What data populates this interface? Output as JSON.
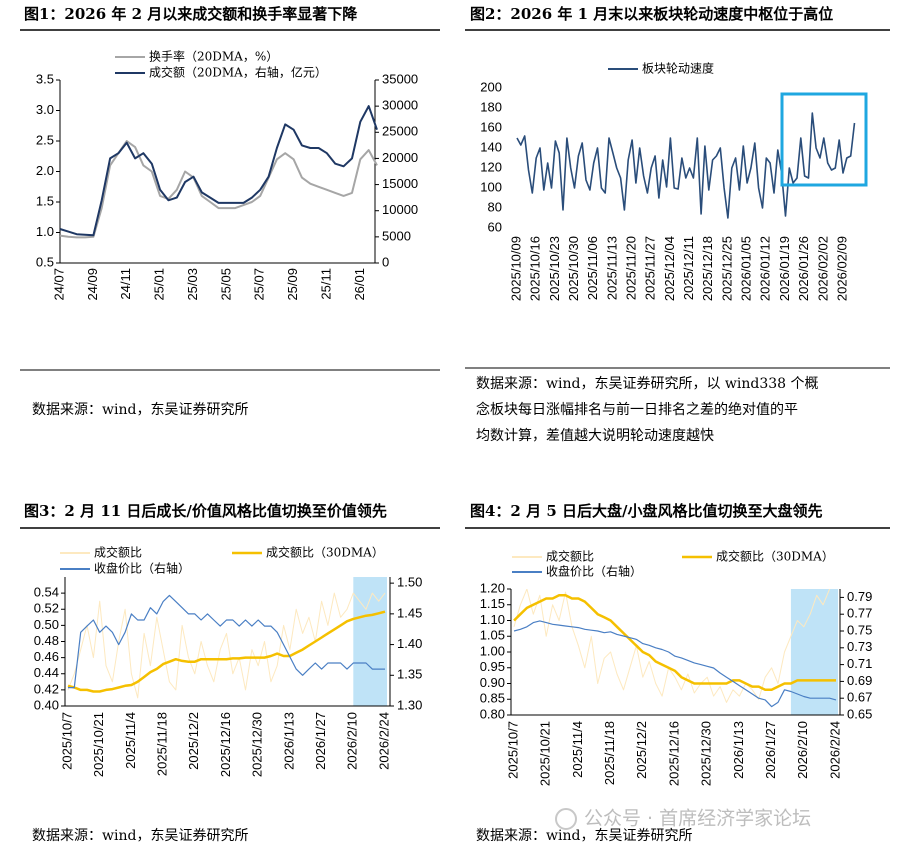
{
  "chart_data": [
    {
      "type": "line",
      "title": "图1：2026 年 2 月以来成交额和换手率显著下降",
      "categories": [
        "24/07",
        null,
        null,
        null,
        "24/09",
        null,
        null,
        null,
        "24/11",
        null,
        null,
        null,
        "25/01",
        null,
        null,
        null,
        "25/03",
        null,
        null,
        null,
        "25/05",
        null,
        null,
        null,
        "25/07",
        null,
        null,
        null,
        "25/09",
        null,
        null,
        null,
        "25/11",
        null,
        null,
        null,
        "26/01",
        null,
        null
      ],
      "series": [
        {
          "name": "换手率（20DMA，%）",
          "color": "#a6a6a6",
          "values": [
            0.95,
            0.93,
            0.92,
            0.92,
            0.93,
            1.4,
            2.1,
            2.3,
            2.5,
            2.4,
            2.1,
            2.0,
            1.6,
            1.55,
            1.7,
            2.0,
            1.9,
            1.6,
            1.5,
            1.4,
            1.4,
            1.4,
            1.45,
            1.5,
            1.6,
            1.9,
            2.2,
            2.3,
            2.2,
            1.9,
            1.8,
            1.75,
            1.7,
            1.65,
            1.6,
            1.65,
            2.2,
            2.35,
            2.1
          ]
        },
        {
          "name": "成交额（20DMA，右轴，亿元）",
          "color": "#1f3864",
          "axis": "y2",
          "values": [
            6500,
            6000,
            5500,
            5400,
            5300,
            12000,
            20000,
            21000,
            23000,
            20000,
            21000,
            19000,
            14000,
            12000,
            12500,
            15500,
            16500,
            13500,
            12500,
            11500,
            11500,
            11500,
            11500,
            12500,
            14000,
            16500,
            22000,
            26500,
            25500,
            22500,
            22000,
            22000,
            21000,
            19000,
            18500,
            20000,
            27000,
            30000,
            25500
          ]
        }
      ],
      "ylim": [
        0.5,
        3.5
      ],
      "yticks": [
        0.5,
        {
          "value": 1,
          "label": "1.0"
        },
        1.5,
        {
          "value": 2,
          "label": "2.0"
        },
        2.5,
        {
          "value": 3,
          "label": "3.0"
        },
        3.5
      ],
      "y2lim": [
        0,
        35000
      ],
      "y2ticks": [
        0,
        5000,
        10000,
        15000,
        20000,
        25000,
        30000,
        35000
      ],
      "source": [
        "数据来源：wind，东吴证券研究所"
      ]
    },
    {
      "type": "line",
      "title": "图2：2026 年 1 月末以来板块轮动速度中枢位于高位",
      "categories": [
        "2025/10/09",
        null,
        null,
        null,
        null,
        "2025/10/16",
        null,
        null,
        null,
        null,
        "2025/10/23",
        null,
        null,
        null,
        null,
        "2025/10/30",
        null,
        null,
        null,
        null,
        "2025/11/06",
        null,
        null,
        null,
        null,
        "2025/11/13",
        null,
        null,
        null,
        null,
        "2025/11/20",
        null,
        null,
        null,
        null,
        "2025/11/27",
        null,
        null,
        null,
        null,
        "2025/12/04",
        null,
        null,
        null,
        null,
        "2025/12/11",
        null,
        null,
        null,
        null,
        "2025/12/18",
        null,
        null,
        null,
        null,
        "2025/12/25",
        null,
        null,
        null,
        null,
        "2026/01/05",
        null,
        null,
        null,
        null,
        "2026/01/12",
        null,
        null,
        null,
        null,
        "2026/01/19",
        null,
        null,
        null,
        null,
        "2026/01/26",
        null,
        null,
        null,
        null,
        "2026/02/02",
        null,
        null,
        null,
        null,
        "2026/02/09",
        null,
        null,
        null
      ],
      "series": [
        {
          "name": "板块轮动速度",
          "color": "#2a4d7a",
          "values": [
            150,
            143,
            152,
            118,
            95,
            130,
            140,
            98,
            125,
            100,
            147,
            135,
            78,
            150,
            120,
            100,
            132,
            145,
            108,
            98,
            125,
            140,
            100,
            95,
            150,
            135,
            120,
            110,
            78,
            128,
            148,
            105,
            140,
            112,
            95,
            120,
            132,
            90,
            128,
            101,
            150,
            100,
            99,
            130,
            110,
            120,
            110,
            150,
            74,
            142,
            98,
            128,
            132,
            140,
            100,
            70,
            120,
            130,
            98,
            142,
            105,
            120,
            145,
            100,
            80,
            130,
            125,
            95,
            138,
            115,
            72,
            120,
            105,
            110,
            150,
            112,
            110,
            175,
            140,
            130,
            150,
            125,
            118,
            120,
            148,
            115,
            130,
            132,
            165
          ]
        }
      ],
      "ylim": [
        60,
        200
      ],
      "yticks": [
        60,
        80,
        100,
        120,
        140,
        160,
        180,
        200
      ],
      "source": [
        "数据来源：wind，东吴证券研究所，以 wind338 个概",
        "念板块每日涨幅排名与前一日排名之差的绝对值的平",
        "均数计算，差值越大说明轮动速度越快"
      ]
    },
    {
      "type": "line",
      "title": "图3：2 月 11 日后成长/价值风格比值切换至价值领先",
      "categories": [
        "2025/10/7",
        null,
        null,
        null,
        null,
        "2025/10/21",
        null,
        null,
        null,
        null,
        "2025/11/4",
        null,
        null,
        null,
        null,
        "2025/11/18",
        null,
        null,
        null,
        null,
        "2025/12/2",
        null,
        null,
        null,
        null,
        "2025/12/16",
        null,
        null,
        null,
        null,
        "2025/12/30",
        null,
        null,
        null,
        null,
        "2026/1/13",
        null,
        null,
        null,
        null,
        "2026/1/27",
        null,
        null,
        null,
        null,
        "2026/2/10",
        null,
        null,
        null,
        null,
        "2026/2/24"
      ],
      "series": [
        {
          "name": "成交额比",
          "color": "#fde9c0",
          "values": [
            0.42,
            0.44,
            0.47,
            0.5,
            0.46,
            0.53,
            0.45,
            0.43,
            0.48,
            0.52,
            0.44,
            0.41,
            0.49,
            0.45,
            0.51,
            0.47,
            0.43,
            0.42,
            0.5,
            0.46,
            0.44,
            0.48,
            0.45,
            0.43,
            0.47,
            0.49,
            0.44,
            0.46,
            0.42,
            0.47,
            0.45,
            0.48,
            0.43,
            0.45,
            0.5,
            0.47,
            0.52,
            0.49,
            0.51,
            0.48,
            0.53,
            0.5,
            0.54,
            0.51,
            0.52,
            0.54,
            0.53,
            0.52,
            0.54,
            0.53,
            0.54
          ]
        },
        {
          "name": "成交额比（30DMA）",
          "color": "#f5c000",
          "values": [
            0.425,
            0.423,
            0.42,
            0.42,
            0.418,
            0.418,
            0.42,
            0.421,
            0.423,
            0.425,
            0.426,
            0.43,
            0.436,
            0.442,
            0.446,
            0.452,
            0.455,
            0.458,
            0.456,
            0.455,
            0.455,
            0.458,
            0.458,
            0.458,
            0.458,
            0.458,
            0.459,
            0.459,
            0.46,
            0.46,
            0.46,
            0.46,
            0.462,
            0.465,
            0.462,
            0.462,
            0.466,
            0.47,
            0.475,
            0.48,
            0.485,
            0.49,
            0.495,
            0.5,
            0.505,
            0.508,
            0.51,
            0.512,
            0.513,
            0.515,
            0.517
          ]
        },
        {
          "name": "收盘价比（右轴）",
          "color": "#4a7fc4",
          "axis": "y2",
          "values": [
            1.33,
            1.33,
            1.42,
            1.43,
            1.44,
            1.42,
            1.43,
            1.42,
            1.4,
            1.42,
            1.45,
            1.44,
            1.44,
            1.46,
            1.45,
            1.47,
            1.48,
            1.47,
            1.46,
            1.45,
            1.45,
            1.44,
            1.45,
            1.44,
            1.43,
            1.44,
            1.44,
            1.43,
            1.44,
            1.43,
            1.44,
            1.43,
            1.43,
            1.42,
            1.4,
            1.38,
            1.36,
            1.35,
            1.36,
            1.37,
            1.36,
            1.37,
            1.37,
            1.37,
            1.36,
            1.37,
            1.37,
            1.37,
            1.36,
            1.36,
            1.36
          ]
        }
      ],
      "ylim": [
        0.4,
        0.56
      ],
      "yticks": [
        {
          "value": 0.4,
          "label": "0.40"
        },
        0.42,
        0.44,
        0.46,
        0.48,
        {
          "value": 0.5,
          "label": "0.50"
        },
        0.52,
        0.54
      ],
      "y2lim": [
        1.3,
        1.51
      ],
      "y2ticks": [
        {
          "value": 1.3,
          "label": "1.30"
        },
        1.35,
        {
          "value": 1.4,
          "label": "1.40"
        },
        1.45,
        {
          "value": 1.5,
          "label": "1.50"
        }
      ],
      "source": [
        "数据来源：wind，东吴证券研究所"
      ]
    },
    {
      "type": "line",
      "title": "图4：2 月 5 日后大盘/小盘风格比值切换至大盘领先",
      "categories": [
        "2025/10/7",
        null,
        null,
        null,
        null,
        "2025/10/21",
        null,
        null,
        null,
        null,
        "2025/11/4",
        null,
        null,
        null,
        null,
        "2025/11/18",
        null,
        null,
        null,
        null,
        "2025/12/2",
        null,
        null,
        null,
        null,
        "2025/12/16",
        null,
        null,
        null,
        null,
        "2025/12/30",
        null,
        null,
        null,
        null,
        "2026/1/13",
        null,
        null,
        null,
        null,
        "2026/1/27",
        null,
        null,
        null,
        null,
        "2026/2/10",
        null,
        null,
        null,
        null,
        "2026/2/24"
      ],
      "series": [
        {
          "name": "成交额比",
          "color": "#fde9c0",
          "values": [
            1.08,
            1.15,
            1.2,
            1.12,
            1.18,
            1.05,
            1.15,
            1.1,
            1.19,
            1.08,
            1.02,
            0.95,
            1.05,
            0.9,
            0.98,
            1.0,
            0.93,
            0.88,
            0.95,
            1.02,
            0.92,
            0.97,
            0.9,
            0.86,
            0.95,
            0.92,
            0.88,
            0.93,
            0.87,
            0.9,
            0.92,
            0.86,
            0.89,
            0.84,
            0.88,
            0.86,
            0.9,
            0.88,
            0.85,
            0.92,
            0.95,
            0.9,
            1.0,
            1.05,
            1.1,
            1.08,
            1.12,
            1.18,
            1.15,
            1.2,
            1.22
          ]
        },
        {
          "name": "成交额比（30DMA）",
          "color": "#f5c000",
          "values": [
            1.1,
            1.12,
            1.14,
            1.15,
            1.16,
            1.17,
            1.17,
            1.18,
            1.18,
            1.17,
            1.17,
            1.16,
            1.14,
            1.12,
            1.11,
            1.1,
            1.08,
            1.06,
            1.04,
            1.02,
            1.0,
            0.99,
            0.97,
            0.96,
            0.95,
            0.94,
            0.92,
            0.91,
            0.9,
            0.9,
            0.9,
            0.9,
            0.9,
            0.9,
            0.91,
            0.91,
            0.9,
            0.89,
            0.89,
            0.88,
            0.88,
            0.89,
            0.9,
            0.9,
            0.91,
            0.91,
            0.91,
            0.91,
            0.91,
            0.91,
            0.91
          ]
        },
        {
          "name": "收盘价比（右轴）",
          "color": "#4a7fc4",
          "axis": "y2",
          "values": [
            0.75,
            0.752,
            0.755,
            0.76,
            0.762,
            0.76,
            0.758,
            0.757,
            0.756,
            0.755,
            0.754,
            0.752,
            0.751,
            0.75,
            0.748,
            0.749,
            0.746,
            0.744,
            0.742,
            0.74,
            0.735,
            0.733,
            0.73,
            0.728,
            0.725,
            0.72,
            0.718,
            0.715,
            0.712,
            0.71,
            0.708,
            0.706,
            0.7,
            0.695,
            0.69,
            0.685,
            0.68,
            0.675,
            0.67,
            0.668,
            0.66,
            0.665,
            0.68,
            0.678,
            0.675,
            0.672,
            0.67,
            0.67,
            0.67,
            0.67,
            0.668
          ]
        }
      ],
      "ylim": [
        0.8,
        1.2
      ],
      "yticks": [
        {
          "value": 0.8,
          "label": "0.80"
        },
        0.85,
        {
          "value": 0.9,
          "label": "0.90"
        },
        0.95,
        {
          "value": 1,
          "label": "1.00"
        },
        1.05,
        {
          "value": 1.1,
          "label": "1.10"
        },
        1.15,
        {
          "value": 1.2,
          "label": "1.20"
        }
      ],
      "y2lim": [
        0.65,
        0.8
      ],
      "y2ticks": [
        0.65,
        0.67,
        0.69,
        0.71,
        0.73,
        0.75,
        0.77,
        0.79
      ],
      "source": [
        "数据来源：wind，东吴证券研究所"
      ]
    }
  ],
  "watermark": "公众号 · 首席经济学家论坛"
}
